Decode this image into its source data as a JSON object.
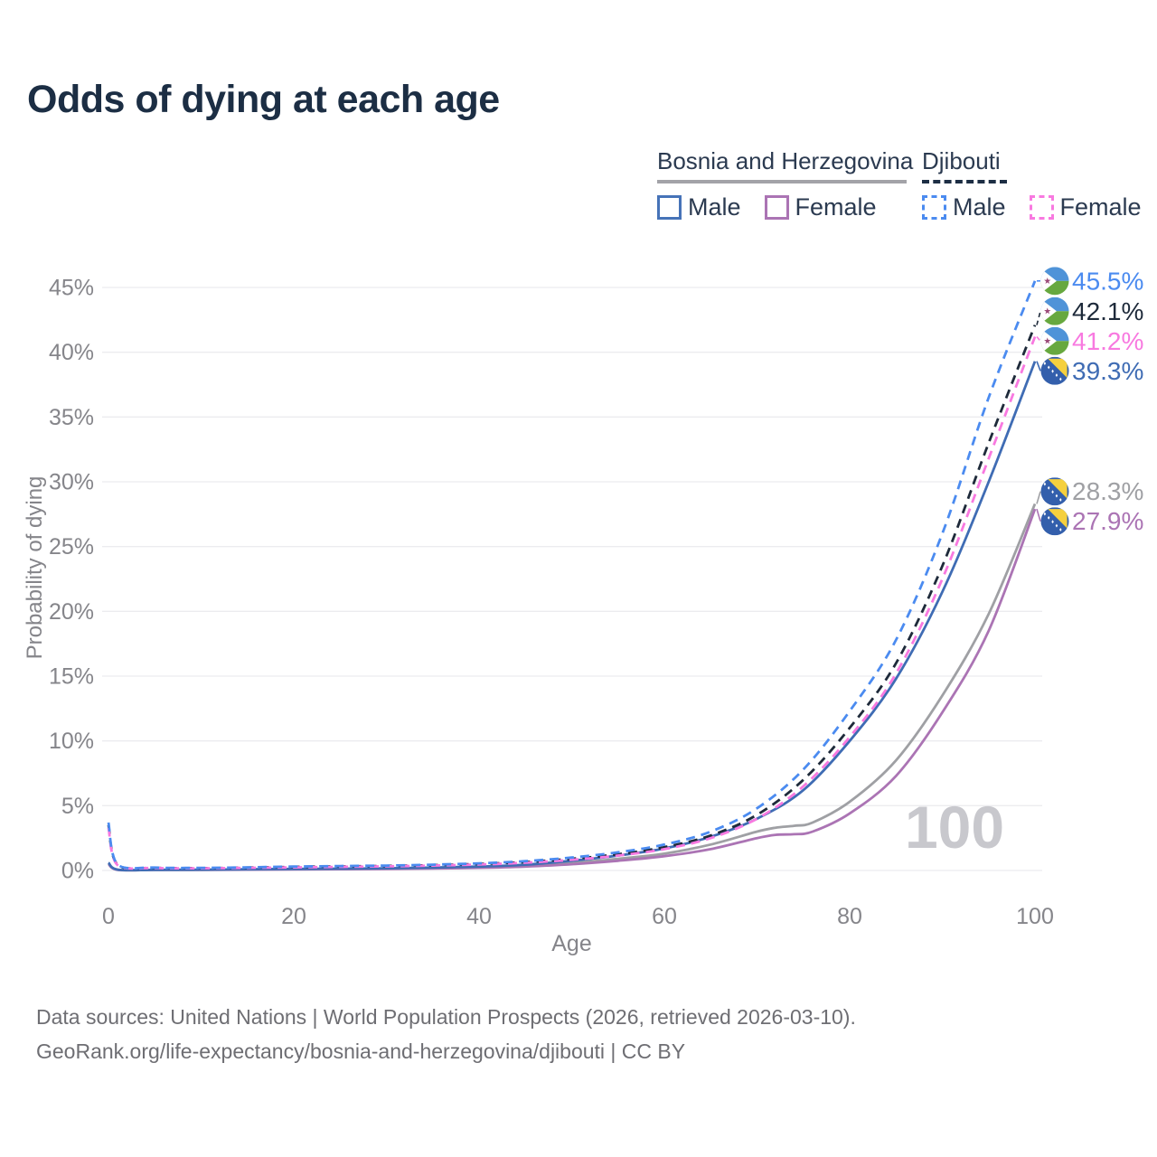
{
  "title": "Odds of dying at each age",
  "watermark_age": "100",
  "legend": {
    "groups": [
      {
        "label": "Bosnia and Herzegovina",
        "line_style": "solid",
        "underline_color": "#a3a3a8",
        "items": [
          {
            "label": "Male",
            "color": "#4673b8"
          },
          {
            "label": "Female",
            "color": "#ab74b4"
          }
        ]
      },
      {
        "label": "Djibouti",
        "line_style": "dashed",
        "underline_color": "#1d2e44",
        "items": [
          {
            "label": "Male",
            "color": "#4b8bf0"
          },
          {
            "label": "Female",
            "color": "#f879e0"
          }
        ]
      }
    ]
  },
  "footer": {
    "line1": "Data sources: United Nations | World Population Prospects (2026, retrieved 2026-03-10).",
    "line2": "GeoRank.org/life-expectancy/bosnia-and-herzegovina/djibouti | CC BY"
  },
  "chart_data": {
    "type": "line",
    "title": "Odds of dying at each age",
    "xlabel": "Age",
    "ylabel": "Probability of dying",
    "xlim": [
      0,
      100
    ],
    "ylim": [
      0,
      47
    ],
    "x_ticks": [
      0,
      20,
      40,
      60,
      80,
      100
    ],
    "y_ticks_percent": [
      0,
      5,
      10,
      15,
      20,
      25,
      30,
      35,
      40,
      45
    ],
    "grid": "horizontal",
    "legend_position": "top-right",
    "series": [
      {
        "name": "Bosnia and Herzegovina — Both sexes",
        "country": "bosnia",
        "sex": "both",
        "color": "#9fa0a4",
        "dashed": false,
        "end_label": "28.3%",
        "end_value": 28.3,
        "points": [
          [
            0,
            0.55
          ],
          [
            1,
            0.055
          ],
          [
            5,
            0.045
          ],
          [
            10,
            0.05
          ],
          [
            15,
            0.075
          ],
          [
            20,
            0.1
          ],
          [
            25,
            0.12
          ],
          [
            30,
            0.14
          ],
          [
            35,
            0.18
          ],
          [
            40,
            0.24
          ],
          [
            45,
            0.36
          ],
          [
            50,
            0.58
          ],
          [
            55,
            0.9
          ],
          [
            60,
            1.3
          ],
          [
            65,
            2.0
          ],
          [
            70,
            3.0
          ],
          [
            72,
            3.3
          ],
          [
            74,
            3.45
          ],
          [
            76,
            3.7
          ],
          [
            80,
            5.3
          ],
          [
            85,
            8.5
          ],
          [
            90,
            13.5
          ],
          [
            95,
            19.8
          ],
          [
            100,
            28.3
          ]
        ]
      },
      {
        "name": "Bosnia and Herzegovina — Female",
        "country": "bosnia",
        "sex": "female",
        "color": "#ab74b4",
        "dashed": false,
        "end_label": "27.9%",
        "end_value": 27.9,
        "points": [
          [
            0,
            0.5
          ],
          [
            1,
            0.05
          ],
          [
            5,
            0.04
          ],
          [
            10,
            0.045
          ],
          [
            15,
            0.065
          ],
          [
            20,
            0.085
          ],
          [
            25,
            0.1
          ],
          [
            30,
            0.12
          ],
          [
            35,
            0.15
          ],
          [
            40,
            0.2
          ],
          [
            45,
            0.3
          ],
          [
            50,
            0.48
          ],
          [
            55,
            0.75
          ],
          [
            60,
            1.1
          ],
          [
            65,
            1.65
          ],
          [
            70,
            2.5
          ],
          [
            72,
            2.75
          ],
          [
            74,
            2.8
          ],
          [
            76,
            3.0
          ],
          [
            80,
            4.4
          ],
          [
            85,
            7.3
          ],
          [
            90,
            12.2
          ],
          [
            95,
            18.5
          ],
          [
            100,
            27.9
          ]
        ]
      },
      {
        "name": "Bosnia and Herzegovina — Male",
        "country": "bosnia",
        "sex": "male",
        "color": "#3f6cb4",
        "dashed": false,
        "end_label": "39.3%",
        "end_value": 39.3,
        "points": [
          [
            0,
            0.6
          ],
          [
            1,
            0.06
          ],
          [
            5,
            0.05
          ],
          [
            10,
            0.06
          ],
          [
            15,
            0.09
          ],
          [
            20,
            0.12
          ],
          [
            25,
            0.14
          ],
          [
            30,
            0.17
          ],
          [
            35,
            0.22
          ],
          [
            40,
            0.3
          ],
          [
            45,
            0.45
          ],
          [
            50,
            0.75
          ],
          [
            55,
            1.15
          ],
          [
            60,
            1.7
          ],
          [
            65,
            2.6
          ],
          [
            70,
            4.0
          ],
          [
            75,
            6.2
          ],
          [
            80,
            10.0
          ],
          [
            85,
            14.8
          ],
          [
            90,
            21.5
          ],
          [
            95,
            30.0
          ],
          [
            100,
            39.3
          ]
        ]
      },
      {
        "name": "Djibouti — Both sexes",
        "country": "djibouti",
        "sex": "both",
        "color": "#1e2a3a",
        "dashed": true,
        "end_label": "42.1%",
        "end_value": 42.1,
        "points": [
          [
            0,
            3.5
          ],
          [
            1,
            0.42
          ],
          [
            5,
            0.2
          ],
          [
            10,
            0.18
          ],
          [
            15,
            0.22
          ],
          [
            20,
            0.27
          ],
          [
            25,
            0.31
          ],
          [
            30,
            0.35
          ],
          [
            35,
            0.41
          ],
          [
            40,
            0.5
          ],
          [
            45,
            0.65
          ],
          [
            50,
            0.9
          ],
          [
            55,
            1.25
          ],
          [
            60,
            1.8
          ],
          [
            65,
            2.7
          ],
          [
            70,
            4.3
          ],
          [
            75,
            7.0
          ],
          [
            80,
            11.0
          ],
          [
            85,
            16.0
          ],
          [
            90,
            23.5
          ],
          [
            95,
            33.0
          ],
          [
            100,
            42.1
          ]
        ]
      },
      {
        "name": "Djibouti — Female",
        "country": "djibouti",
        "sex": "female",
        "color": "#f879e0",
        "dashed": true,
        "end_label": "41.2%",
        "end_value": 41.2,
        "points": [
          [
            0,
            3.3
          ],
          [
            1,
            0.4
          ],
          [
            5,
            0.19
          ],
          [
            10,
            0.17
          ],
          [
            15,
            0.2
          ],
          [
            20,
            0.24
          ],
          [
            25,
            0.28
          ],
          [
            30,
            0.32
          ],
          [
            35,
            0.38
          ],
          [
            40,
            0.46
          ],
          [
            45,
            0.6
          ],
          [
            50,
            0.82
          ],
          [
            55,
            1.15
          ],
          [
            60,
            1.65
          ],
          [
            65,
            2.5
          ],
          [
            70,
            4.0
          ],
          [
            75,
            6.5
          ],
          [
            80,
            10.3
          ],
          [
            85,
            15.2
          ],
          [
            90,
            22.5
          ],
          [
            95,
            31.8
          ],
          [
            100,
            41.2
          ]
        ]
      },
      {
        "name": "Djibouti — Male",
        "country": "djibouti",
        "sex": "male",
        "color": "#4b8bf0",
        "dashed": true,
        "end_label": "45.5%",
        "end_value": 45.5,
        "points": [
          [
            0,
            3.7
          ],
          [
            1,
            0.45
          ],
          [
            5,
            0.22
          ],
          [
            10,
            0.2
          ],
          [
            15,
            0.24
          ],
          [
            20,
            0.3
          ],
          [
            25,
            0.34
          ],
          [
            30,
            0.38
          ],
          [
            35,
            0.45
          ],
          [
            40,
            0.55
          ],
          [
            45,
            0.72
          ],
          [
            50,
            1.0
          ],
          [
            55,
            1.4
          ],
          [
            60,
            2.0
          ],
          [
            65,
            3.0
          ],
          [
            70,
            4.8
          ],
          [
            75,
            7.8
          ],
          [
            80,
            12.3
          ],
          [
            85,
            17.8
          ],
          [
            90,
            26.0
          ],
          [
            95,
            36.5
          ],
          [
            100,
            45.5
          ]
        ]
      }
    ],
    "flag_colors": {
      "bosnia": {
        "field": "#335fac",
        "triangle": "#f5d03e",
        "stars": "#ffffff"
      },
      "djibouti": {
        "top": "#4f93d8",
        "bottom": "#67a83f",
        "triangle": "#ffffff",
        "star": "#9b4a78"
      }
    }
  }
}
